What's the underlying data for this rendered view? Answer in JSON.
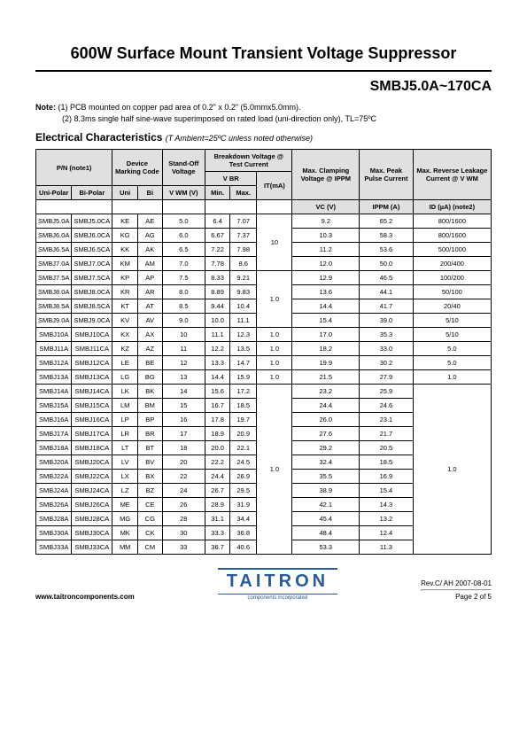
{
  "title": "600W Surface Mount Transient Voltage Suppressor",
  "subtitle": "SMBJ5.0A~170CA",
  "note_label": "Note:",
  "note1": "(1) PCB mounted on copper pad area of 0.2\" x 0.2\" (5.0mmx5.0mm).",
  "note2": "(2) 8.3ms single half sine-wave superimposed on rated load (uni-direction only), TL=75ºC",
  "section_title": "Electrical Characteristics",
  "conditions": "(T Ambient=25ºC unless noted otherwise)",
  "headers": {
    "pn": "P/N  (note1)",
    "marking": "Device Marking Code",
    "standoff": "Stand-Off Voltage",
    "breakdown": "Breakdown Voltage @ Test Current",
    "vbr": "V BR",
    "it": "IT(mA)",
    "clamping": "Max. Clamping Voltage @ IPPM",
    "peak": "Max. Peak Pulse Current",
    "leakage": "Max. Reverse Leakage Current @ V WM",
    "unipolar": "Uni-Polar",
    "bipolar": "Bi-Polar",
    "uni": "Uni",
    "bi": "Bi",
    "vwm": "V WM  (V)",
    "min": "Min.",
    "max": "Max.",
    "vc": "VC  (V)",
    "ippm": "IPPM (A)",
    "id": "ID (µA) (note2)"
  },
  "rows": [
    {
      "up": "SMBJ5.0A",
      "bp": "SMBJ5.0CA",
      "u": "KE",
      "b": "AE",
      "vwm": "5.0",
      "min": "6.4",
      "max": "7.07",
      "vc": "9.2",
      "ippm": "65.2",
      "id": "800/1600"
    },
    {
      "up": "SMBJ6.0A",
      "bp": "SMBJ6.0CA",
      "u": "KG",
      "b": "AG",
      "vwm": "6.0",
      "min": "6.67",
      "max": "7.37",
      "vc": "10.3",
      "ippm": "58.3",
      "id": "800/1600"
    },
    {
      "up": "SMBJ6.5A",
      "bp": "SMBJ6.5CA",
      "u": "KK",
      "b": "AK",
      "vwm": "6.5",
      "min": "7.22",
      "max": "7.98",
      "vc": "11.2",
      "ippm": "53.6",
      "id": "500/1000"
    },
    {
      "up": "SMBJ7.0A",
      "bp": "SMBJ7.0CA",
      "u": "KM",
      "b": "AM",
      "vwm": "7.0",
      "min": "7.78",
      "max": "8.6",
      "vc": "12.0",
      "ippm": "50.0",
      "id": "200/400"
    },
    {
      "up": "SMBJ7.5A",
      "bp": "SMBJ7.5CA",
      "u": "KP",
      "b": "AP",
      "vwm": "7.5",
      "min": "8.33",
      "max": "9.21",
      "vc": "12.9",
      "ippm": "46.5",
      "id": "100/200"
    },
    {
      "up": "SMBJ8.0A",
      "bp": "SMBJ8.0CA",
      "u": "KR",
      "b": "AR",
      "vwm": "8.0",
      "min": "8.89",
      "max": "9.83",
      "vc": "13.6",
      "ippm": "44.1",
      "id": "50/100"
    },
    {
      "up": "SMBJ8.5A",
      "bp": "SMBJ8.5CA",
      "u": "KT",
      "b": "AT",
      "vwm": "8.5",
      "min": "9.44",
      "max": "10.4",
      "vc": "14.4",
      "ippm": "41.7",
      "id": "20/40"
    },
    {
      "up": "SMBJ9.0A",
      "bp": "SMBJ9.0CA",
      "u": "KV",
      "b": "AV",
      "vwm": "9.0",
      "min": "10.0",
      "max": "11.1",
      "vc": "15.4",
      "ippm": "39.0",
      "id": "5/10"
    },
    {
      "up": "SMBJ10A",
      "bp": "SMBJ10CA",
      "u": "KX",
      "b": "AX",
      "vwm": "10",
      "min": "11.1",
      "max": "12.3",
      "it": "1.0",
      "vc": "17.0",
      "ippm": "35.3",
      "id": "5/10"
    },
    {
      "up": "SMBJ11A",
      "bp": "SMBJ11CA",
      "u": "KZ",
      "b": "AZ",
      "vwm": "11",
      "min": "12.2",
      "max": "13.5",
      "it": "1.0",
      "vc": "18.2",
      "ippm": "33.0",
      "id": "5.0"
    },
    {
      "up": "SMBJ12A",
      "bp": "SMBJ12CA",
      "u": "LE",
      "b": "BE",
      "vwm": "12",
      "min": "13.3",
      "max": "14.7",
      "it": "1.0",
      "vc": "19.9",
      "ippm": "30.2",
      "id": "5.0"
    },
    {
      "up": "SMBJ13A",
      "bp": "SMBJ13CA",
      "u": "LG",
      "b": "BG",
      "vwm": "13",
      "min": "14.4",
      "max": "15.9",
      "it": "1.0",
      "vc": "21.5",
      "ippm": "27.9",
      "id": "1.0"
    },
    {
      "up": "SMBJ14A",
      "bp": "SMBJ14CA",
      "u": "LK",
      "b": "BK",
      "vwm": "14",
      "min": "15.6",
      "max": "17.2",
      "vc": "23.2",
      "ippm": "25.9"
    },
    {
      "up": "SMBJ15A",
      "bp": "SMBJ15CA",
      "u": "LM",
      "b": "BM",
      "vwm": "15",
      "min": "16.7",
      "max": "18.5",
      "vc": "24.4",
      "ippm": "24.6"
    },
    {
      "up": "SMBJ16A",
      "bp": "SMBJ16CA",
      "u": "LP",
      "b": "BP",
      "vwm": "16",
      "min": "17.8",
      "max": "19.7",
      "vc": "26.0",
      "ippm": "23.1"
    },
    {
      "up": "SMBJ17A",
      "bp": "SMBJ17CA",
      "u": "LR",
      "b": "BR",
      "vwm": "17",
      "min": "18.9",
      "max": "20.9",
      "vc": "27.6",
      "ippm": "21.7"
    },
    {
      "up": "SMBJ18A",
      "bp": "SMBJ18CA",
      "u": "LT",
      "b": "BT",
      "vwm": "18",
      "min": "20.0",
      "max": "22.1",
      "vc": "29.2",
      "ippm": "20.5"
    },
    {
      "up": "SMBJ20A",
      "bp": "SMBJ20CA",
      "u": "LV",
      "b": "BV",
      "vwm": "20",
      "min": "22.2",
      "max": "24.5",
      "vc": "32.4",
      "ippm": "18.5"
    },
    {
      "up": "SMBJ22A",
      "bp": "SMBJ22CA",
      "u": "LX",
      "b": "BX",
      "vwm": "22",
      "min": "24.4",
      "max": "26.9",
      "vc": "35.5",
      "ippm": "16.9"
    },
    {
      "up": "SMBJ24A",
      "bp": "SMBJ24CA",
      "u": "LZ",
      "b": "BZ",
      "vwm": "24",
      "min": "26.7",
      "max": "29.5",
      "vc": "38.9",
      "ippm": "15.4"
    },
    {
      "up": "SMBJ26A",
      "bp": "SMBJ26CA",
      "u": "ME",
      "b": "CE",
      "vwm": "26",
      "min": "28.9",
      "max": "31.9",
      "vc": "42.1",
      "ippm": "14.3"
    },
    {
      "up": "SMBJ28A",
      "bp": "SMBJ28CA",
      "u": "MG",
      "b": "CG",
      "vwm": "28",
      "min": "31.1",
      "max": "34.4",
      "vc": "45.4",
      "ippm": "13.2"
    },
    {
      "up": "SMBJ30A",
      "bp": "SMBJ30CA",
      "u": "MK",
      "b": "CK",
      "vwm": "30",
      "min": "33.3",
      "max": "36.8",
      "vc": "48.4",
      "ippm": "12.4"
    },
    {
      "up": "SMBJ33A",
      "bp": "SMBJ33CA",
      "u": "MM",
      "b": "CM",
      "vwm": "33",
      "min": "36.7",
      "max": "40.6",
      "vc": "53.3",
      "ippm": "11.3"
    }
  ],
  "it_group1": "10",
  "it_group2": "1.0",
  "it_group3": "1.0",
  "id_group3": "1.0",
  "footer": {
    "url": "www.taitroncomponents.com",
    "rev": "Rev.C/ AH 2007-08-01",
    "page": "Page 2 of 5",
    "logo": "TAITRON",
    "logo_sub": "components incorporated"
  },
  "colors": {
    "header_bg": "#e0e0e0",
    "border": "#000000",
    "logo": "#2a5a9a"
  }
}
